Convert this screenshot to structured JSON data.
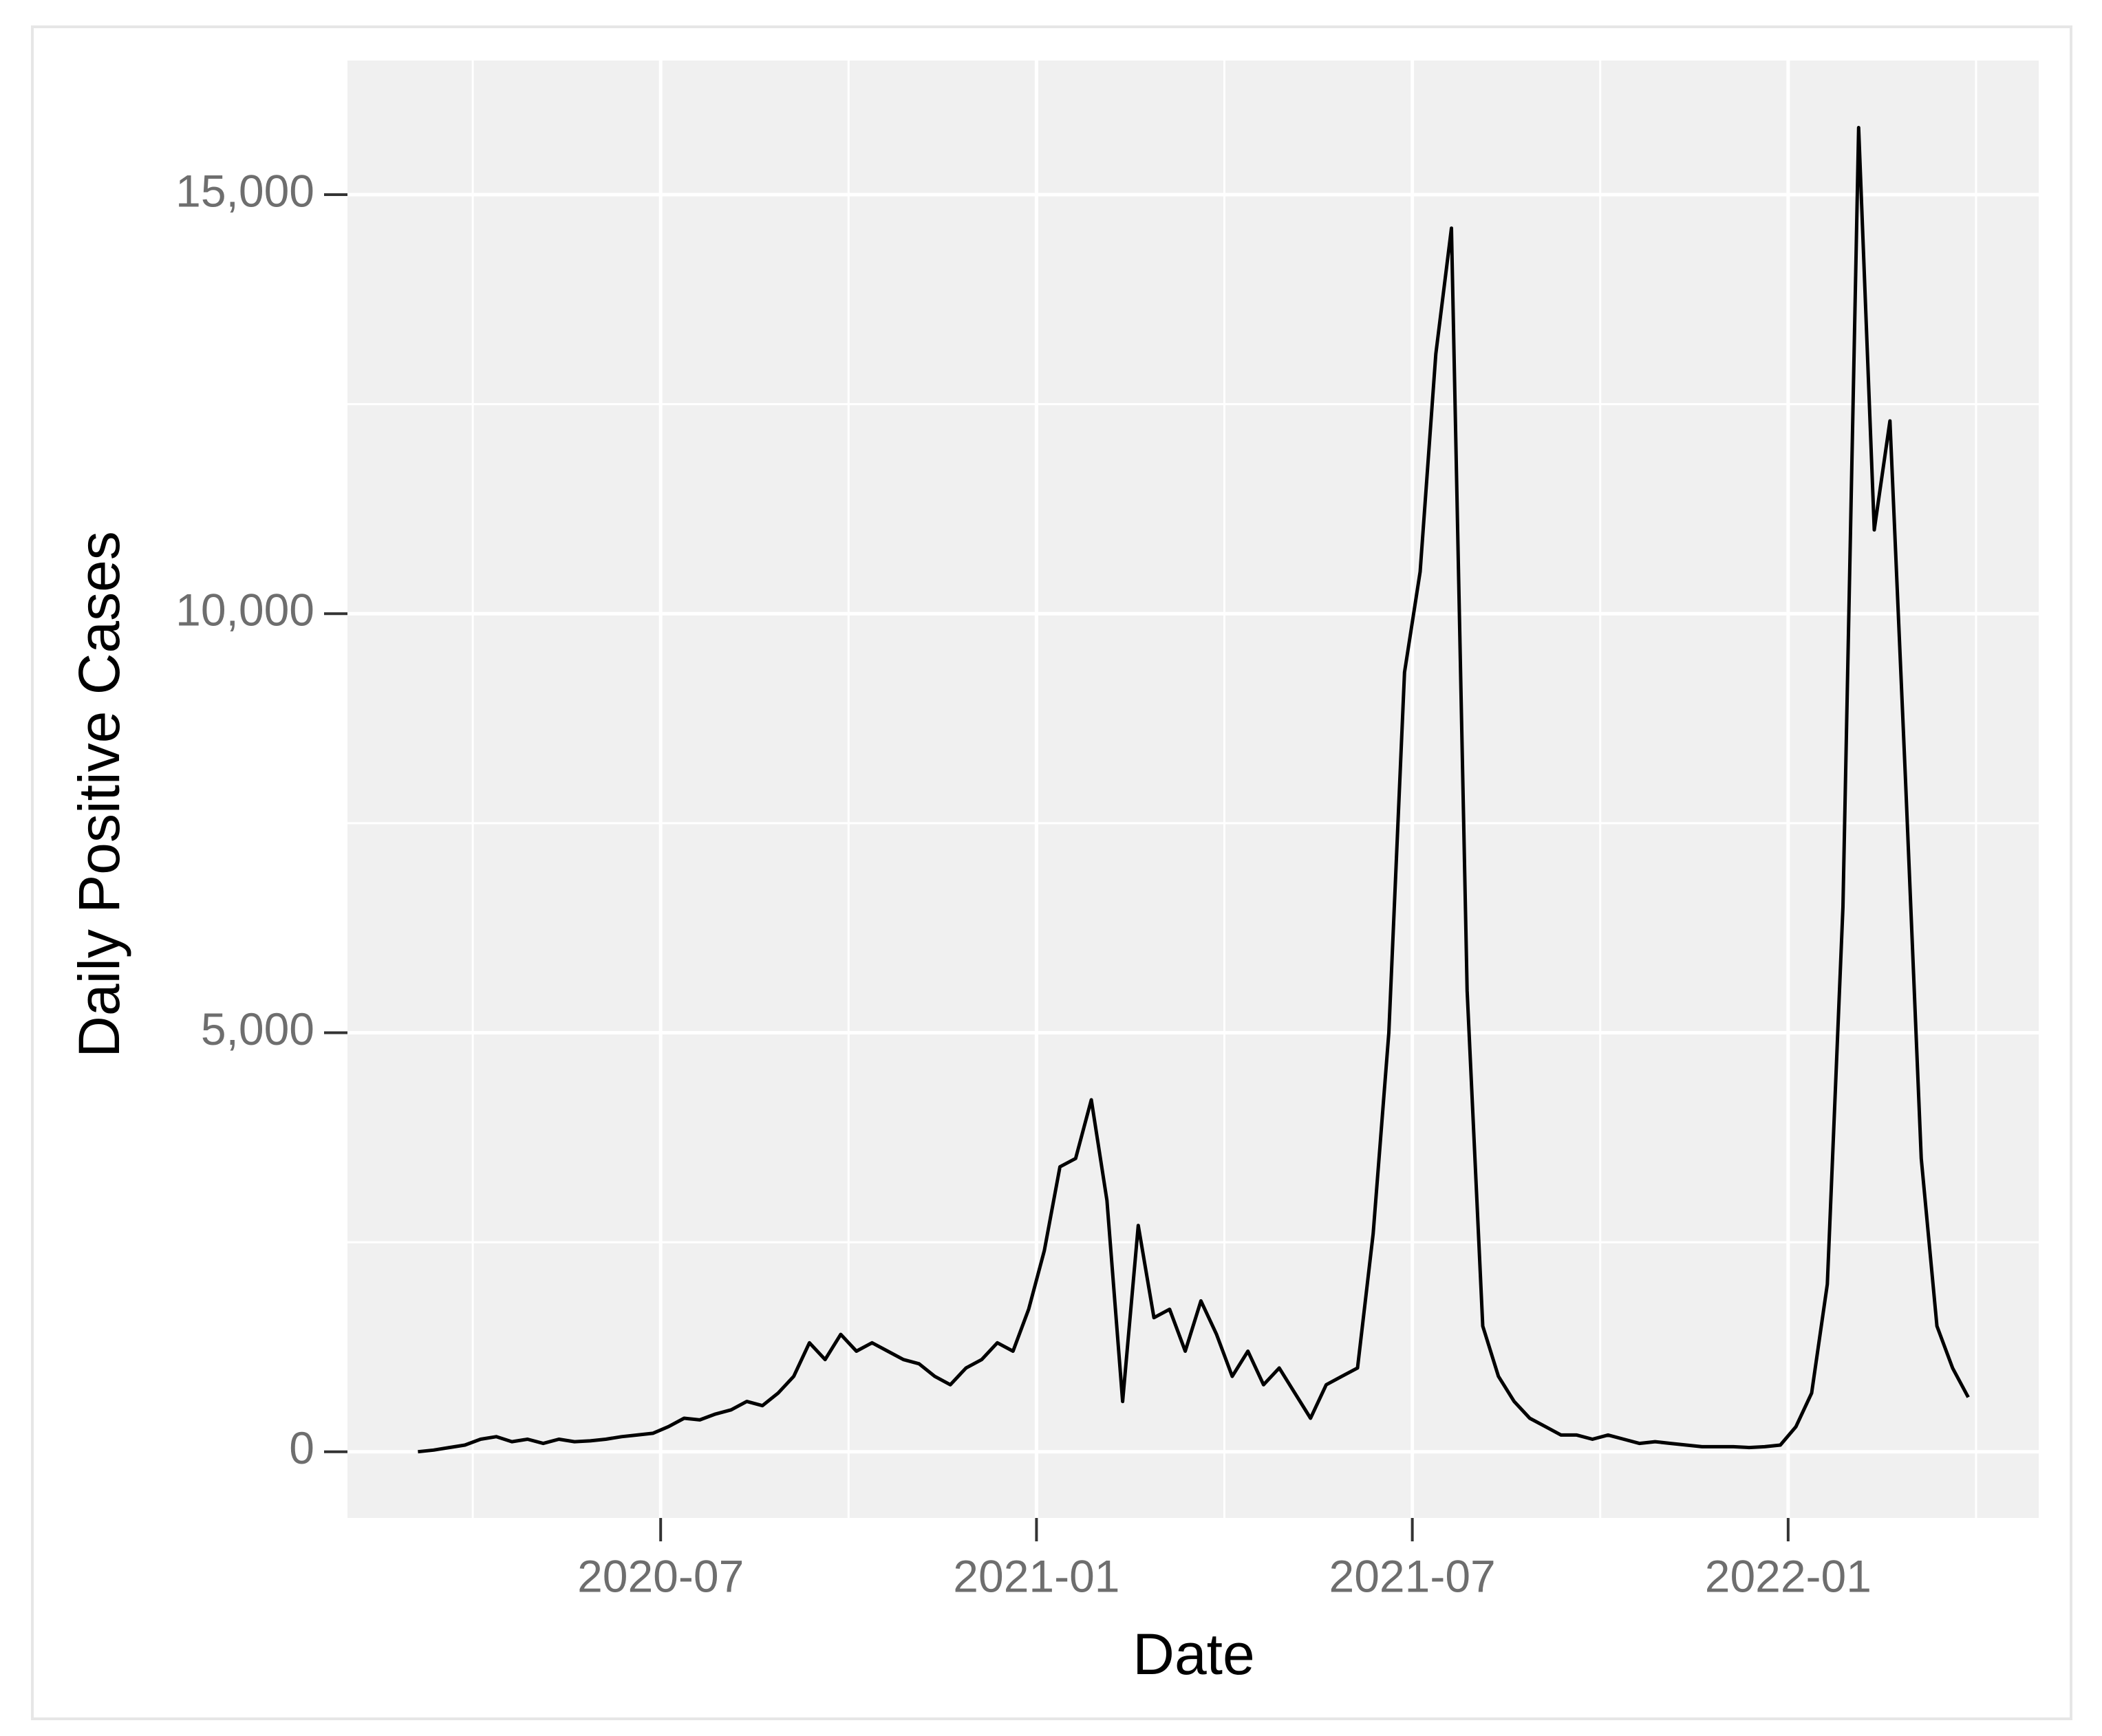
{
  "chart_data": {
    "type": "line",
    "x_label": "Date",
    "y_label": "Daily Positive Cases",
    "x": [
      "2020-03",
      "2020-03",
      "2020-03",
      "2020-03",
      "2020-04",
      "2020-04",
      "2020-04",
      "2020-04",
      "2020-05",
      "2020-05",
      "2020-05",
      "2020-05",
      "2020-06",
      "2020-06",
      "2020-06",
      "2020-06",
      "2020-07",
      "2020-07",
      "2020-07",
      "2020-07",
      "2020-08",
      "2020-08",
      "2020-08",
      "2020-08",
      "2020-09",
      "2020-09",
      "2020-09",
      "2020-09",
      "2020-10",
      "2020-10",
      "2020-10",
      "2020-10",
      "2020-11",
      "2020-11",
      "2020-11",
      "2020-11",
      "2020-12",
      "2020-12",
      "2020-12",
      "2020-12",
      "2021-01",
      "2021-01",
      "2021-01",
      "2021-01",
      "2021-02",
      "2021-02",
      "2021-02",
      "2021-02",
      "2021-03",
      "2021-03",
      "2021-03",
      "2021-03",
      "2021-04",
      "2021-04",
      "2021-04",
      "2021-04",
      "2021-05",
      "2021-05",
      "2021-05",
      "2021-05",
      "2021-06",
      "2021-06",
      "2021-06",
      "2021-06",
      "2021-07",
      "2021-07",
      "2021-07",
      "2021-07",
      "2021-08",
      "2021-08",
      "2021-08",
      "2021-08",
      "2021-09",
      "2021-09",
      "2021-09",
      "2021-09",
      "2021-10",
      "2021-10",
      "2021-10",
      "2021-10",
      "2021-11",
      "2021-11",
      "2021-11",
      "2021-11",
      "2021-12",
      "2021-12",
      "2021-12",
      "2021-12",
      "2022-01",
      "2022-01",
      "2022-01",
      "2022-01",
      "2022-02",
      "2022-02",
      "2022-02",
      "2022-02",
      "2022-03",
      "2022-03",
      "2022-03",
      "2022-03"
    ],
    "series": [
      {
        "name": "Daily Positive Cases",
        "color": "#000000",
        "values": [
          0,
          20,
          50,
          80,
          150,
          180,
          120,
          150,
          100,
          150,
          120,
          130,
          150,
          180,
          200,
          220,
          300,
          400,
          380,
          450,
          500,
          600,
          550,
          700,
          900,
          1300,
          1100,
          1400,
          1200,
          1300,
          1200,
          1100,
          1050,
          900,
          800,
          1000,
          1100,
          1300,
          1200,
          1700,
          2400,
          3400,
          3500,
          4200,
          3000,
          600,
          2700,
          1600,
          1700,
          1200,
          1800,
          1400,
          900,
          1200,
          800,
          1000,
          700,
          400,
          800,
          900,
          1000,
          2600,
          5000,
          9300,
          10500,
          13100,
          14600,
          5500,
          1500,
          900,
          600,
          400,
          300,
          200,
          200,
          150,
          200,
          150,
          100,
          120,
          100,
          80,
          60,
          60,
          60,
          50,
          60,
          80,
          300,
          700,
          2000,
          6500,
          15800,
          11000,
          12300,
          8000,
          3500,
          1500,
          1000,
          650
        ]
      }
    ],
    "xlim": [
      "2020-02",
      "2022-05"
    ],
    "xticks": [
      "2020-07",
      "2021-01",
      "2021-07",
      "2022-01"
    ],
    "xminorticks": [
      "2020-04",
      "2020-10",
      "2021-04",
      "2021-10",
      "2022-04"
    ],
    "ylim": [
      -790,
      16600
    ],
    "yticks": [
      0,
      {
        "value": 5000,
        "label": "5,000"
      },
      {
        "value": 10000,
        "label": "10,000"
      },
      {
        "value": 15000,
        "label": "15,000"
      }
    ],
    "yminorticks": [
      2500,
      7500,
      12500
    ],
    "grid": true
  }
}
